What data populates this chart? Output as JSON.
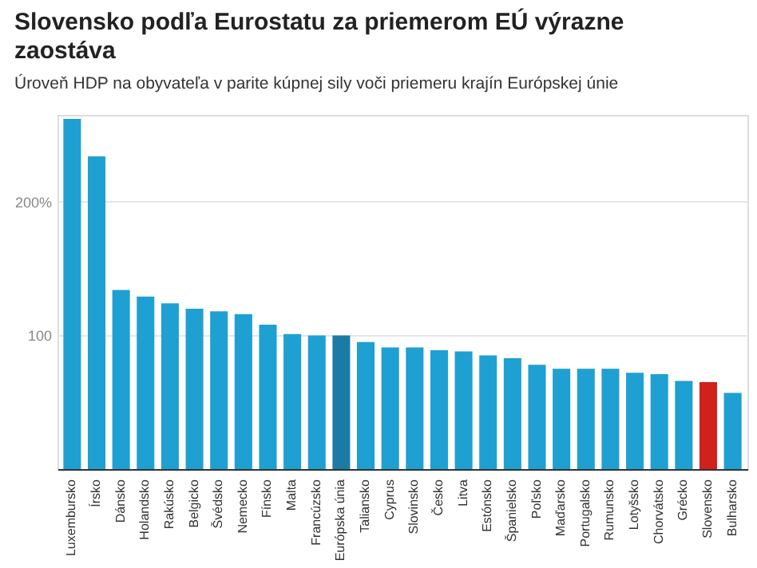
{
  "chart_data": {
    "type": "bar",
    "title": "Slovensko podľa Eurostatu za priemerom EÚ výrazne zaostáva",
    "subtitle": "Úroveň HDP na obyvateľa v parite kúpnej sily voči priemeru krajín Európskej únie",
    "categories": [
      "Luxembursko",
      "Írsko",
      "Dánsko",
      "Holandsko",
      "Rakúsko",
      "Belgicko",
      "Švédsko",
      "Nemecko",
      "Fínsko",
      "Malta",
      "Francúzsko",
      "Európska únia",
      "Taliansko",
      "Cyprus",
      "Slovinsko",
      "Česko",
      "Litva",
      "Estónsko",
      "Španielsko",
      "Poľsko",
      "Maďarsko",
      "Portugalsko",
      "Rumunsko",
      "Lotyšsko",
      "Chorvátsko",
      "Grécko",
      "Slovensko",
      "Bulharsko"
    ],
    "values": [
      262,
      234,
      134,
      129,
      124,
      120,
      118,
      116,
      108,
      101,
      100,
      100,
      95,
      91,
      91,
      89,
      88,
      85,
      83,
      78,
      75,
      75,
      75,
      72,
      71,
      66,
      65,
      57
    ],
    "colors": [
      "#1fa0d2",
      "#1fa0d2",
      "#1fa0d2",
      "#1fa0d2",
      "#1fa0d2",
      "#1fa0d2",
      "#1fa0d2",
      "#1fa0d2",
      "#1fa0d2",
      "#1fa0d2",
      "#1fa0d2",
      "#1c7ba5",
      "#1fa0d2",
      "#1fa0d2",
      "#1fa0d2",
      "#1fa0d2",
      "#1fa0d2",
      "#1fa0d2",
      "#1fa0d2",
      "#1fa0d2",
      "#1fa0d2",
      "#1fa0d2",
      "#1fa0d2",
      "#1fa0d2",
      "#1fa0d2",
      "#1fa0d2",
      "#d0211c",
      "#1fa0d2"
    ],
    "ylim": [
      0,
      265
    ],
    "yticks": [
      {
        "value": 100,
        "label": "100"
      },
      {
        "value": 200,
        "label": "200%"
      }
    ],
    "grid": "y",
    "legend": false
  }
}
